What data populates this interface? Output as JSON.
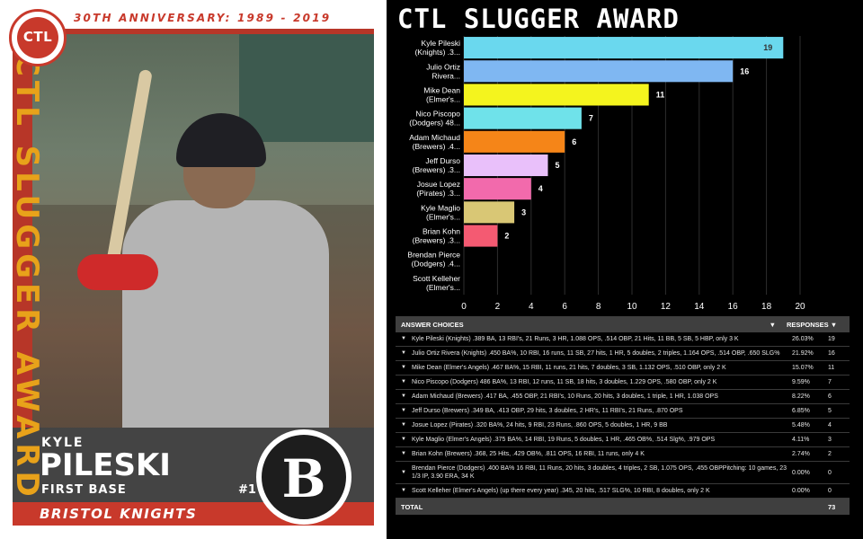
{
  "card": {
    "anniversary": "30TH ANNIVERSARY: 1989 - 2019",
    "league_logo_text": "CTL",
    "vertical_title": "CTL SLUGGER AWARD",
    "first_name": "KYLE",
    "last_name": "PILESKI",
    "position": "FIRST BASE",
    "number": "#1",
    "team": "BRISTOL KNIGHTS",
    "team_logo_letter": "B",
    "colors": {
      "red": "#c8392b",
      "gold": "#e8a21a",
      "dark": "#444444"
    }
  },
  "chart_title": "CTL SLUGGER AWARD",
  "chart_data": {
    "type": "bar",
    "orientation": "horizontal",
    "categories": [
      [
        "Kyle Pileski",
        "(Knights) .3..."
      ],
      [
        "Julio Ortiz",
        "Rivera..."
      ],
      [
        "Mike Dean",
        "(Elmer's..."
      ],
      [
        "Nico Piscopo",
        "(Dodgers) 48..."
      ],
      [
        "Adam Michaud",
        "(Brewers) .4..."
      ],
      [
        "Jeff Durso",
        "(Brewers) .3..."
      ],
      [
        "Josue Lopez",
        "(Pirates) .3..."
      ],
      [
        "Kyle Maglio",
        "(Elmer's..."
      ],
      [
        "Brian Kohn",
        "(Brewers) .3..."
      ],
      [
        "Brendan Pierce",
        "(Dodgers) .4..."
      ],
      [
        "Scott Kelleher",
        "(Elmer's..."
      ]
    ],
    "values": [
      19,
      16,
      11,
      7,
      6,
      5,
      4,
      3,
      2,
      0,
      0
    ],
    "colors": [
      "#6ad8ee",
      "#7fb7f2",
      "#f4f41e",
      "#6fe2ea",
      "#f58518",
      "#e9c0fa",
      "#f26aac",
      "#d9c775",
      "#f45a72",
      "#888888",
      "#888888"
    ],
    "xlim": [
      0,
      20
    ],
    "xticks": [
      0,
      2,
      4,
      6,
      8,
      10,
      12,
      14,
      16,
      18,
      20
    ],
    "grid": true
  },
  "table": {
    "header_answer": "ANSWER CHOICES",
    "header_responses": "RESPONSES",
    "rows": [
      {
        "text": "Kyle Pileski (Knights) .389 BA, 13 RBI's, 21 Runs, 3 HR, 1.088 OPS, .514 OBP, 21 Hits, 11 BB, 5 SB, 5 HBP, only 3 K",
        "pct": "26.03%",
        "count": "19"
      },
      {
        "text": "Julio Ortiz Rivera (Knights) .450 BA%, 10 RBI, 16 runs, 11 SB, 27 hits, 1 HR, 5 doubles, 2 triples, 1.164 OPS, .514 OBP, .650 SLG%",
        "pct": "21.92%",
        "count": "16"
      },
      {
        "text": "Mike Dean (Elmer's Angels) .467 BA%, 15 RBI, 11 runs, 21 hits, 7 doubles, 3 SB, 1.132 OPS, .510 OBP, only 2 K",
        "pct": "15.07%",
        "count": "11"
      },
      {
        "text": "Nico Piscopo (Dodgers) 486 BA%, 13 RBI, 12 runs, 11 SB, 18 hits, 3 doubles, 1.229 OPS, .580 OBP, only 2 K",
        "pct": "9.59%",
        "count": "7"
      },
      {
        "text": "Adam Michaud (Brewers) .417 BA, .455 OBP, 21 RBI's, 10 Runs, 20 hits, 3 doubles, 1 triple, 1 HR, 1.038 OPS",
        "pct": "8.22%",
        "count": "6"
      },
      {
        "text": "Jeff Durso (Brewers) .349 BA, .413 OBP, 29 hits, 3 doubles, 2 HR's, 11 RBI's, 21 Runs, .870 OPS",
        "pct": "6.85%",
        "count": "5"
      },
      {
        "text": "Josue Lopez (Pirates) .320 BA%, 24 hits, 9 RBI, 23 Runs, .860 OPS, 5 doubles, 1 HR, 9 BB",
        "pct": "5.48%",
        "count": "4"
      },
      {
        "text": "Kyle Maglio (Elmer's Angels) .375 BA%, 14 RBI, 19 Runs, 5 doubles, 1 HR, .465 OB%, .514 Slg%, .979 OPS",
        "pct": "4.11%",
        "count": "3"
      },
      {
        "text": "Brian Kohn (Brewers) .368, 25 Hits, .429 OB%, .811 OPS, 16 RBI, 11 runs, only 4 K",
        "pct": "2.74%",
        "count": "2"
      },
      {
        "text": "Brendan Pierce (Dodgers) .400 BA% 16 RBI, 11 Runs, 20 hits, 3 doubles, 4 triples, 2 SB, 1.075 OPS, .455 OBPPitching: 10 games, 23 1/3 IP, 3.90 ERA, 34 K",
        "pct": "0.00%",
        "count": "0"
      },
      {
        "text": "Scott Kelleher (Elmer's Angels) (up there every year) .345, 20 hits, .517 SLG%, 10 RBI, 8 doubles, only 2 K",
        "pct": "0.00%",
        "count": "0"
      }
    ],
    "total_label": "TOTAL",
    "total_value": "73"
  }
}
